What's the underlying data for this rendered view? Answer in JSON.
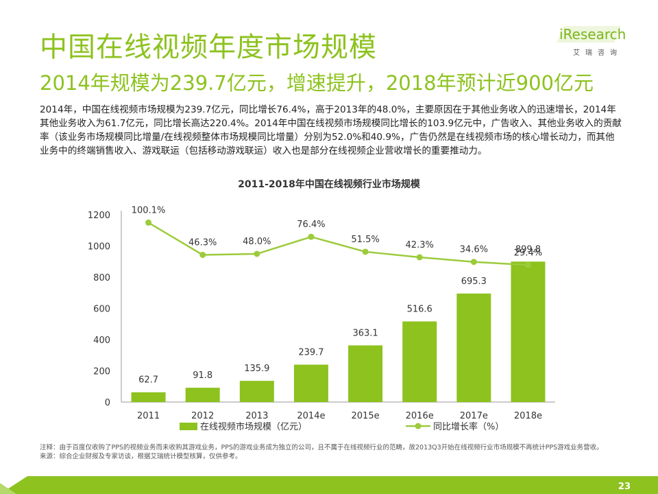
{
  "header": {
    "title": "中国在线视频年度市场规模",
    "subtitle": "2014年规模为239.7亿元，增速提升，2018年预计近900亿元"
  },
  "logo": {
    "name": "iResearch",
    "tagline": "艾瑞咨询"
  },
  "body_text": "2014年，中国在线视频市场规模为239.7亿元，同比增长76.4%，高于2013年的48.0%，主要原因在于其他业务收入的迅速增长，2014年其他业务收入为61.7亿元，同比增长高达220.4%。2014年中国在线视频市场规模同比增长的103.9亿元中，广告收入、其他业务收入的贡献率（该业务市场规模同比增量/在线视频整体市场规模同比增量）分别为52.0%和40.9%，广告仍然是在线视频市场的核心增长动力，而其他业务中的终端销售收入、游戏联运（包括移动游戏联运）收入也是部分在线视频企业营收增长的重要推动力。",
  "notes": {
    "note": "注释：由于百度仅收购了PPS的视频业务而未收购其游戏业务，PPS的游戏业务成为独立的公司，且不属于在线视频行业的范畴，故2013Q3开始在线视频行业市场规模不再统计PPS游戏业务营收。",
    "source": "来源：综合企业财报及专家访谈，根据艾瑞统计模型核算，仅供参考。"
  },
  "page_number": "23",
  "colors": {
    "accent": "#8dc21f",
    "bar": "#8dc21f",
    "line": "#9ccb3b"
  },
  "chart_data": {
    "type": "bar",
    "title": "2011-2018年中国在线视频行业市场规模",
    "categories": [
      "2011",
      "2012",
      "2013",
      "2014e",
      "2015e",
      "2016e",
      "2017e",
      "2018e"
    ],
    "series": [
      {
        "name": "在线视频市场规模（亿元）",
        "type": "bar",
        "values": [
          62.7,
          91.8,
          135.9,
          239.7,
          363.1,
          516.6,
          695.3,
          899.8
        ]
      },
      {
        "name": "同比增长率（%）",
        "type": "line",
        "values": [
          100.1,
          46.3,
          48.0,
          76.4,
          51.5,
          42.3,
          34.6,
          29.4
        ]
      }
    ],
    "value_labels": [
      "62.7",
      "91.8",
      "135.9",
      "239.7",
      "363.1",
      "516.6",
      "695.3",
      "899.8"
    ],
    "growth_labels": [
      "100.1%",
      "46.3%",
      "48.0%",
      "76.4%",
      "51.5%",
      "42.3%",
      "34.6%",
      "29.4%"
    ],
    "y_ticks": [
      "0",
      "200",
      "400",
      "600",
      "800",
      "1000",
      "1200"
    ],
    "ylim": [
      0,
      1200
    ],
    "grid": false,
    "legend_position": "bottom"
  }
}
